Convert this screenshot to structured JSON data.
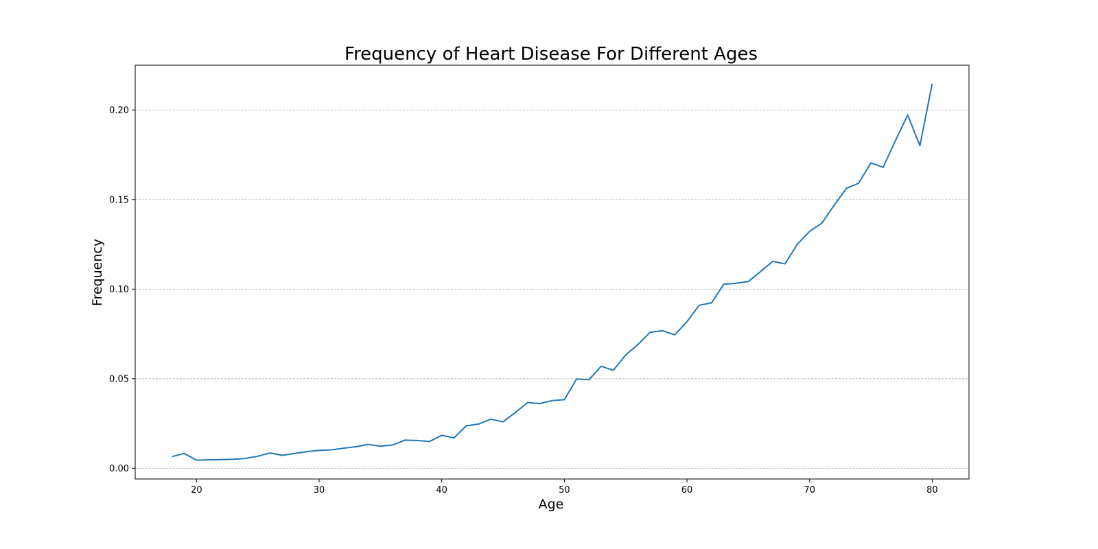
{
  "chart_data": {
    "type": "line",
    "title": "Frequency of Heart Disease For Different Ages",
    "xlabel": "Age",
    "ylabel": "Frequency",
    "xlim": [
      15,
      83
    ],
    "ylim": [
      -0.006,
      0.225
    ],
    "xticks": [
      20,
      30,
      40,
      50,
      60,
      70,
      80
    ],
    "xtick_labels": [
      "20",
      "30",
      "40",
      "50",
      "60",
      "70",
      "80"
    ],
    "yticks": [
      0.0,
      0.05,
      0.1,
      0.15,
      0.2
    ],
    "ytick_labels": [
      "0.00",
      "0.05",
      "0.10",
      "0.15",
      "0.20"
    ],
    "grid": "y-dashed",
    "color": "#1f77b4",
    "x": [
      18,
      19,
      20,
      21,
      22,
      23,
      24,
      25,
      26,
      27,
      28,
      29,
      30,
      31,
      32,
      33,
      34,
      35,
      36,
      37,
      38,
      39,
      40,
      41,
      42,
      43,
      44,
      45,
      46,
      47,
      48,
      49,
      50,
      51,
      52,
      53,
      54,
      55,
      56,
      57,
      58,
      59,
      60,
      61,
      62,
      63,
      64,
      65,
      66,
      67,
      68,
      69,
      70,
      71,
      72,
      73,
      74,
      75,
      76,
      77,
      78,
      79,
      80
    ],
    "y": [
      0.0065,
      0.0083,
      0.0045,
      0.0047,
      0.0048,
      0.005,
      0.0055,
      0.0067,
      0.0085,
      0.0072,
      0.0083,
      0.0092,
      0.01,
      0.0103,
      0.0112,
      0.012,
      0.0133,
      0.0123,
      0.013,
      0.0157,
      0.0155,
      0.0149,
      0.0184,
      0.017,
      0.0237,
      0.0247,
      0.0274,
      0.0259,
      0.0311,
      0.0367,
      0.0361,
      0.0378,
      0.0383,
      0.0498,
      0.0494,
      0.0569,
      0.0547,
      0.0632,
      0.0691,
      0.0759,
      0.0768,
      0.0745,
      0.0818,
      0.091,
      0.0923,
      0.1027,
      0.1033,
      0.1042,
      0.1098,
      0.1155,
      0.1141,
      0.1251,
      0.1322,
      0.1368,
      0.1468,
      0.1562,
      0.1591,
      0.1705,
      0.168,
      0.1829,
      0.1972,
      0.1801,
      0.2147
    ]
  }
}
